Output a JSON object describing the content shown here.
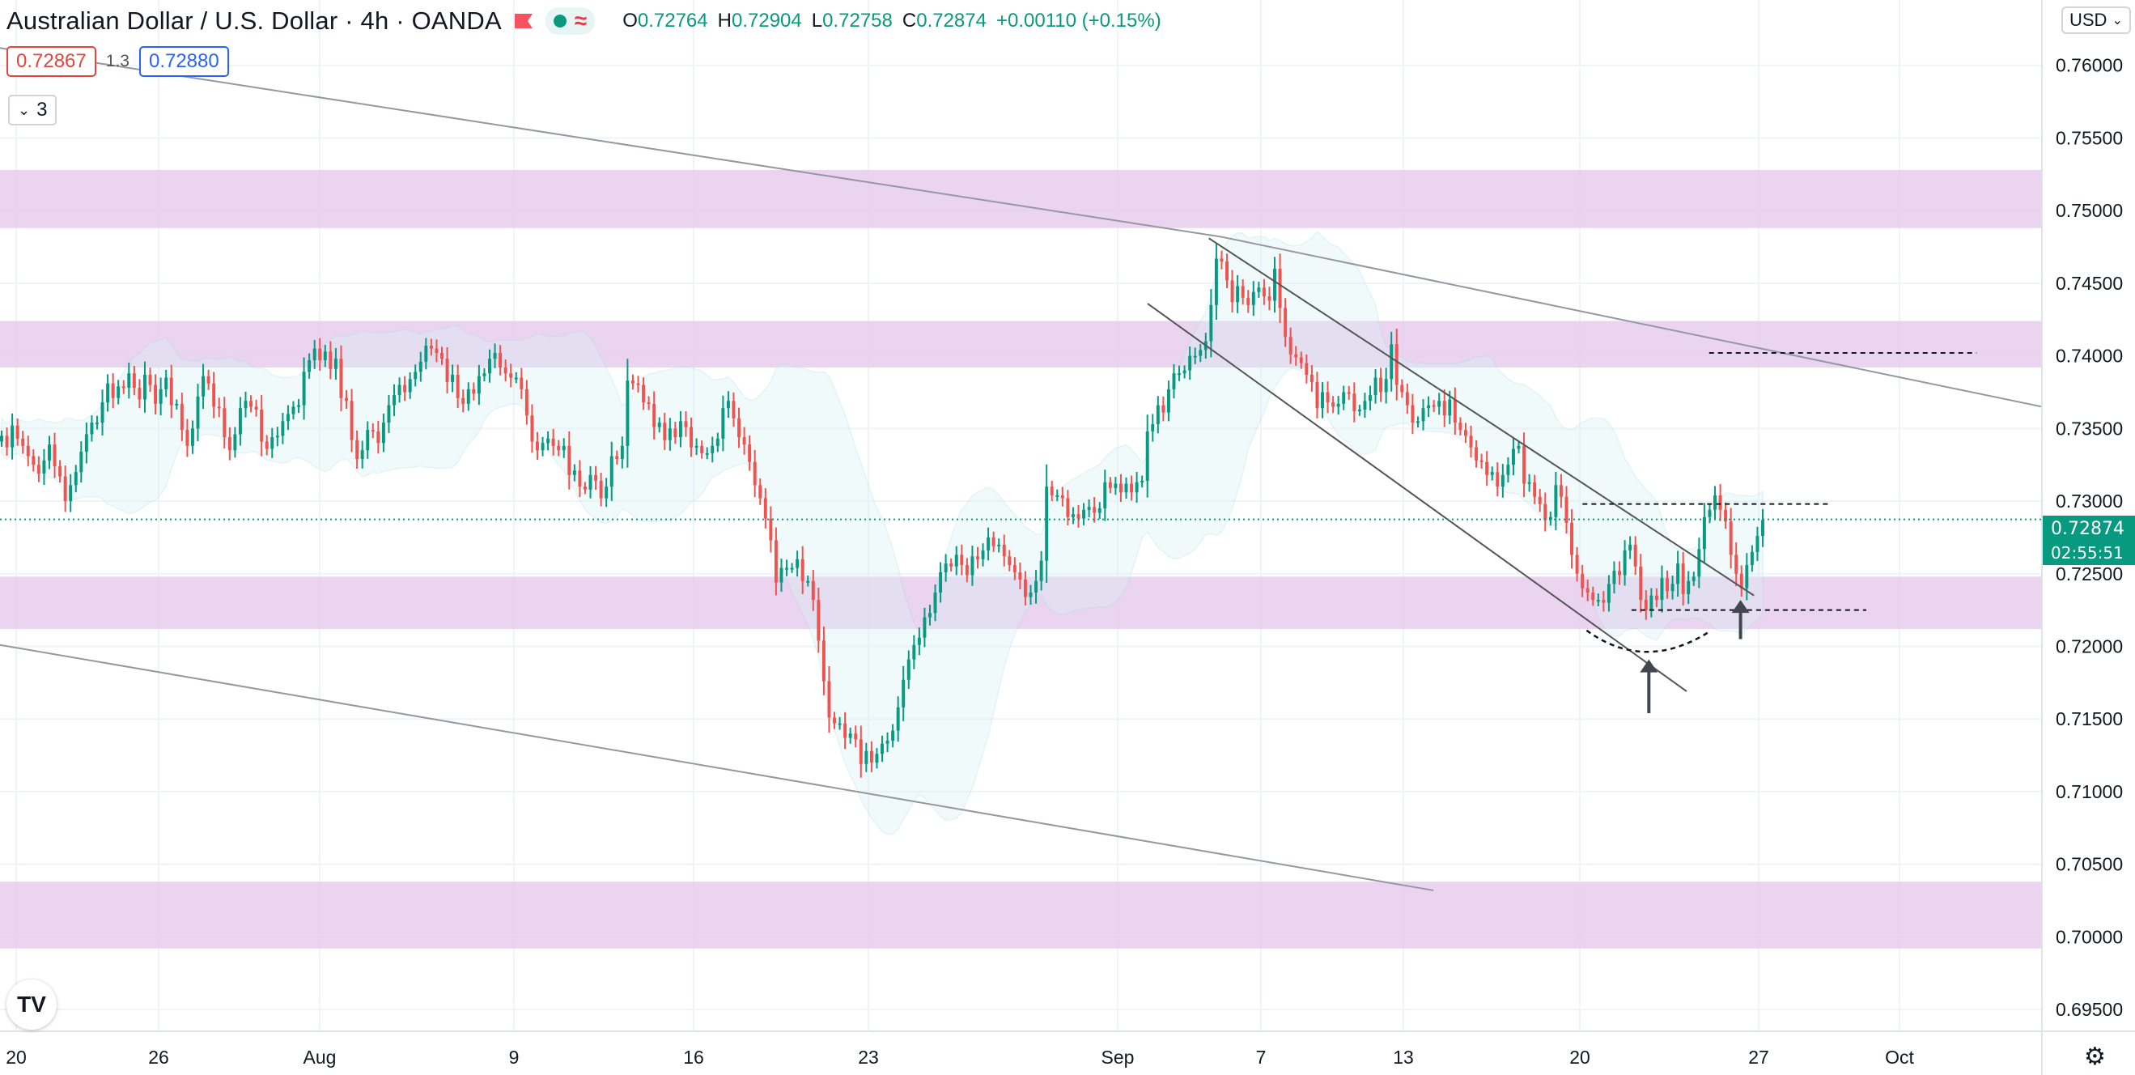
{
  "header": {
    "symbol": "Australian Dollar / U.S. Dollar",
    "interval": "4h",
    "broker": "OANDA",
    "ohlc": [
      {
        "key": "O",
        "value": "0.72764"
      },
      {
        "key": "H",
        "value": "0.72904"
      },
      {
        "key": "L",
        "value": "0.72758"
      },
      {
        "key": "C",
        "value": "0.72874"
      }
    ],
    "change": "+0.00110 (+0.15%)"
  },
  "trade": {
    "sell": "0.72867",
    "spread": "1.3",
    "buy": "0.72880"
  },
  "indicators": {
    "count": "3"
  },
  "currency": "USD",
  "last": {
    "price": "0.72874",
    "countdown": "02:55:51"
  },
  "logo": "TV",
  "colors": {
    "up": "#089981",
    "down": "#ef5350",
    "zone": "#e6cdec",
    "band": "#d9f1f5",
    "trend": "#9598a1",
    "channel": "#555555",
    "dash": "#131722"
  },
  "chart_data": {
    "type": "candlestick",
    "y_range": [
      0.6935,
      0.7645
    ],
    "grid": true,
    "y_ticks": [
      "0.76000",
      "0.75500",
      "0.75000",
      "0.74500",
      "0.74000",
      "0.73500",
      "0.73000",
      "0.72500",
      "0.72000",
      "0.71500",
      "0.71000",
      "0.70500",
      "0.70000",
      "0.69500"
    ],
    "x_ticks": [
      "20",
      "26",
      "Aug",
      "9",
      "16",
      "23",
      "Sep",
      "7",
      "13",
      "20",
      "27",
      "Oct"
    ],
    "zones": [
      [
        0.7488,
        0.7528
      ],
      [
        0.7392,
        0.7424
      ],
      [
        0.7212,
        0.7248
      ],
      [
        0.6992,
        0.7038
      ]
    ],
    "closes": [
      0.7345,
      0.7337,
      0.7352,
      0.7343,
      0.7338,
      0.7331,
      0.7325,
      0.7319,
      0.7328,
      0.7339,
      0.7324,
      0.7317,
      0.73,
      0.7311,
      0.732,
      0.7334,
      0.7346,
      0.7354,
      0.7354,
      0.7368,
      0.7381,
      0.7371,
      0.7379,
      0.7378,
      0.7388,
      0.7378,
      0.737,
      0.7387,
      0.738,
      0.7367,
      0.7377,
      0.7385,
      0.7366,
      0.7367,
      0.7349,
      0.7338,
      0.735,
      0.7372,
      0.7386,
      0.7381,
      0.7365,
      0.7364,
      0.7344,
      0.7335,
      0.7346,
      0.7364,
      0.7369,
      0.7365,
      0.7363,
      0.7341,
      0.7336,
      0.7344,
      0.7345,
      0.7355,
      0.736,
      0.7365,
      0.7366,
      0.7389,
      0.7397,
      0.7405,
      0.7397,
      0.7403,
      0.7391,
      0.7398,
      0.7371,
      0.7369,
      0.7342,
      0.7329,
      0.7335,
      0.7349,
      0.7348,
      0.734,
      0.7354,
      0.7366,
      0.7373,
      0.738,
      0.7375,
      0.7384,
      0.7389,
      0.7396,
      0.7407,
      0.7405,
      0.7402,
      0.7398,
      0.7382,
      0.7387,
      0.7371,
      0.7367,
      0.7377,
      0.7374,
      0.7386,
      0.7388,
      0.7398,
      0.7402,
      0.7392,
      0.7388,
      0.7385,
      0.7385,
      0.7377,
      0.7359,
      0.7341,
      0.7335,
      0.734,
      0.7343,
      0.7338,
      0.7335,
      0.7338,
      0.7318,
      0.7321,
      0.731,
      0.7308,
      0.7318,
      0.7314,
      0.7302,
      0.731,
      0.7331,
      0.7329,
      0.7338,
      0.7383,
      0.7381,
      0.738,
      0.7368,
      0.7367,
      0.7351,
      0.7354,
      0.7342,
      0.735,
      0.7344,
      0.7355,
      0.7351,
      0.7337,
      0.7338,
      0.7333,
      0.7333,
      0.7338,
      0.7343,
      0.7364,
      0.7369,
      0.7357,
      0.7344,
      0.7339,
      0.7327,
      0.7311,
      0.7302,
      0.7288,
      0.7273,
      0.7244,
      0.7254,
      0.7254,
      0.7254,
      0.726,
      0.7245,
      0.7245,
      0.7232,
      0.7204,
      0.7176,
      0.7151,
      0.7147,
      0.7147,
      0.7137,
      0.714,
      0.7136,
      0.7119,
      0.7128,
      0.712,
      0.7126,
      0.7133,
      0.7135,
      0.7142,
      0.7158,
      0.7177,
      0.7191,
      0.7201,
      0.7206,
      0.722,
      0.7223,
      0.7237,
      0.7251,
      0.7257,
      0.7255,
      0.7263,
      0.7256,
      0.7249,
      0.7262,
      0.726,
      0.7266,
      0.7275,
      0.7269,
      0.727,
      0.7262,
      0.7256,
      0.7251,
      0.7246,
      0.7234,
      0.7237,
      0.7245,
      0.7259,
      0.731,
      0.7304,
      0.7304,
      0.7302,
      0.7289,
      0.7291,
      0.7288,
      0.7294,
      0.7296,
      0.7292,
      0.7295,
      0.7313,
      0.7309,
      0.7312,
      0.7306,
      0.7312,
      0.7306,
      0.7313,
      0.7314,
      0.7348,
      0.7353,
      0.7366,
      0.7361,
      0.7377,
      0.7388,
      0.7388,
      0.739,
      0.74,
      0.74,
      0.7404,
      0.741,
      0.7435,
      0.7467,
      0.7465,
      0.7452,
      0.7437,
      0.7448,
      0.744,
      0.7435,
      0.7444,
      0.7447,
      0.7441,
      0.7438,
      0.746,
      0.7433,
      0.7413,
      0.7401,
      0.7399,
      0.7395,
      0.7387,
      0.7382,
      0.7364,
      0.7375,
      0.7368,
      0.7365,
      0.7367,
      0.7375,
      0.7374,
      0.7362,
      0.7363,
      0.7369,
      0.7373,
      0.7385,
      0.7375,
      0.7384,
      0.7408,
      0.738,
      0.7375,
      0.7366,
      0.7354,
      0.7355,
      0.7364,
      0.7366,
      0.7365,
      0.7369,
      0.7359,
      0.737,
      0.7354,
      0.7349,
      0.7345,
      0.7337,
      0.7328,
      0.7327,
      0.7318,
      0.732,
      0.731,
      0.7318,
      0.7325,
      0.7336,
      0.7338,
      0.7312,
      0.7313,
      0.7303,
      0.7298,
      0.7287,
      0.7289,
      0.7311,
      0.7303,
      0.7285,
      0.7263,
      0.725,
      0.724,
      0.7237,
      0.7232,
      0.7232,
      0.723,
      0.7243,
      0.7252,
      0.7249,
      0.7266,
      0.727,
      0.7255,
      0.7232,
      0.7225,
      0.7235,
      0.7232,
      0.7247,
      0.7238,
      0.7243,
      0.7257,
      0.7236,
      0.7245,
      0.7248,
      0.7267,
      0.7289,
      0.7294,
      0.7304,
      0.7294,
      0.7286,
      0.7263,
      0.725,
      0.724,
      0.7256,
      0.7265,
      0.7276,
      0.7287
    ]
  },
  "annotations": {
    "trend_upper": [
      [
        -0.0002,
        0.7612
      ],
      [
        0.598,
        0.7482
      ],
      [
        1.0,
        0.7365
      ]
    ],
    "trend_lower": [
      [
        0.0,
        0.7201
      ],
      [
        0.702,
        0.7032
      ]
    ],
    "channel_upper": [
      [
        0.592,
        0.7481
      ],
      [
        0.859,
        0.7235
      ]
    ],
    "channel_lower": [
      [
        0.562,
        0.7436
      ],
      [
        0.826,
        0.7169
      ]
    ],
    "dashed_levels": [
      [
        0.837,
        0.968,
        0.7402
      ],
      [
        0.775,
        0.897,
        0.7298
      ],
      [
        0.799,
        0.914,
        0.7225
      ]
    ],
    "arc": [
      [
        0.777,
        0.7211
      ],
      [
        0.8053,
        0.7192
      ],
      [
        0.837,
        0.721
      ]
    ],
    "arrows": [
      [
        0.8075,
        0.7154,
        0.7191
      ],
      [
        0.8524,
        0.7205,
        0.7232
      ]
    ]
  }
}
